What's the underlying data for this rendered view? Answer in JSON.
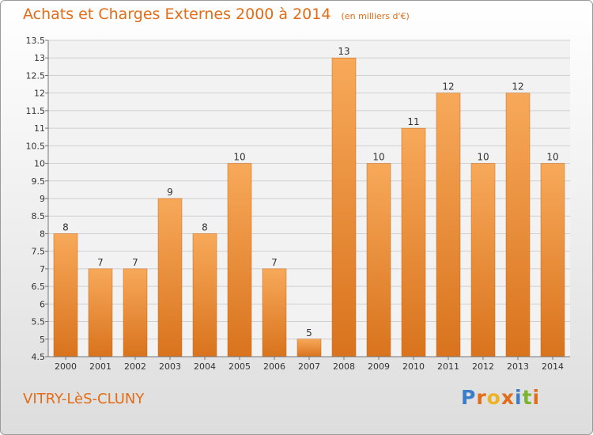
{
  "header": {
    "title": "Achats et Charges Externes 2000 à 2014",
    "unit": "(en milliers d'€)"
  },
  "footer": {
    "commune": "VITRY-LèS-CLUNY",
    "logo_text": "Proxiti"
  },
  "colors": {
    "accent": "#e36c17",
    "bar_top": "#f7a95a",
    "bar_bottom": "#d9731d"
  },
  "chart_data": {
    "type": "bar",
    "title": "Achats et Charges Externes 2000 à 2014",
    "subtitle": "(en milliers d'€)",
    "categories": [
      "2000",
      "2001",
      "2002",
      "2003",
      "2004",
      "2005",
      "2006",
      "2007",
      "2008",
      "2009",
      "2010",
      "2011",
      "2012",
      "2013",
      "2014"
    ],
    "values": [
      8,
      7,
      7,
      9,
      8,
      10,
      7,
      5,
      13,
      10,
      11,
      12,
      10,
      12,
      10
    ],
    "data_labels": [
      "8",
      "7",
      "7",
      "9",
      "8",
      "10",
      "7",
      "5",
      "13",
      "10",
      "11",
      "12",
      "10",
      "12",
      "10"
    ],
    "ylim": [
      4.5,
      13.5
    ],
    "yticks": [
      "4.5",
      "5",
      "5.5",
      "6",
      "6.5",
      "7",
      "7.5",
      "8",
      "8.5",
      "9",
      "9.5",
      "10",
      "10.5",
      "11",
      "11.5",
      "12",
      "12.5",
      "13",
      "13.5"
    ],
    "grid": true
  }
}
